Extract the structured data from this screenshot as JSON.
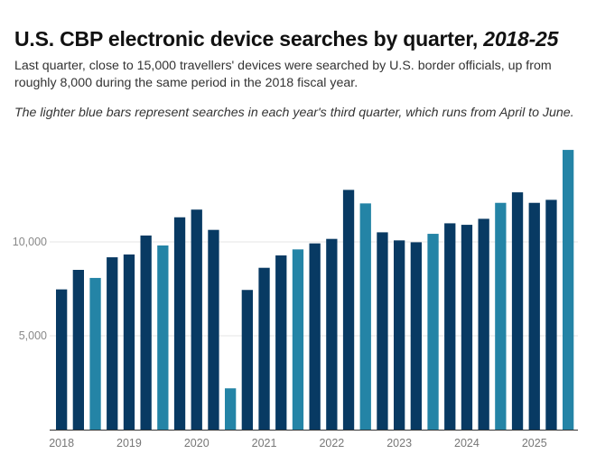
{
  "chart_data": {
    "type": "bar",
    "title": "U.S. CBP electronic device searches by quarter, ",
    "title_italic": "2018-25",
    "subtitle": "Last quarter, close to 15,000 travellers' devices were searched by U.S. border officials, up from roughly 8,000 during the same period in the 2018 fiscal year.",
    "note": "The lighter blue bars represent searches in each year's third quarter, which runs from April to June.",
    "xlabel": "",
    "ylabel": "",
    "ylim": [
      0,
      15000
    ],
    "grid": true,
    "yticks": [
      5000,
      10000
    ],
    "ytick_labels": [
      "5,000",
      "10,000"
    ],
    "xtick_labels": [
      "2018",
      "2019",
      "2020",
      "2021",
      "2022",
      "2023",
      "2024",
      "2025"
    ],
    "colors": {
      "default": "#083a63",
      "highlight": "#2484a6",
      "grid": "#e6e6e6",
      "axis": "#333333"
    },
    "categories": [
      "2018 Q1",
      "2018 Q2",
      "2018 Q3",
      "2018 Q4",
      "2019 Q1",
      "2019 Q2",
      "2019 Q3",
      "2019 Q4",
      "2020 Q1",
      "2020 Q2",
      "2020 Q3",
      "2020 Q4",
      "2021 Q1",
      "2021 Q2",
      "2021 Q3",
      "2021 Q4",
      "2022 Q1",
      "2022 Q2",
      "2022 Q3",
      "2022 Q4",
      "2023 Q1",
      "2023 Q2",
      "2023 Q3",
      "2023 Q4",
      "2024 Q1",
      "2024 Q2",
      "2024 Q3",
      "2024 Q4",
      "2025 Q1",
      "2025 Q2",
      "2025 Q3"
    ],
    "values": [
      7470,
      8510,
      8080,
      9180,
      9330,
      10340,
      9810,
      11310,
      11720,
      10640,
      2200,
      7440,
      8620,
      9280,
      9600,
      9920,
      10160,
      12770,
      12050,
      10510,
      10080,
      9980,
      10430,
      10990,
      10910,
      11230,
      12080,
      12640,
      12080,
      12240,
      14900
    ],
    "highlight_quarter": "Q3"
  }
}
